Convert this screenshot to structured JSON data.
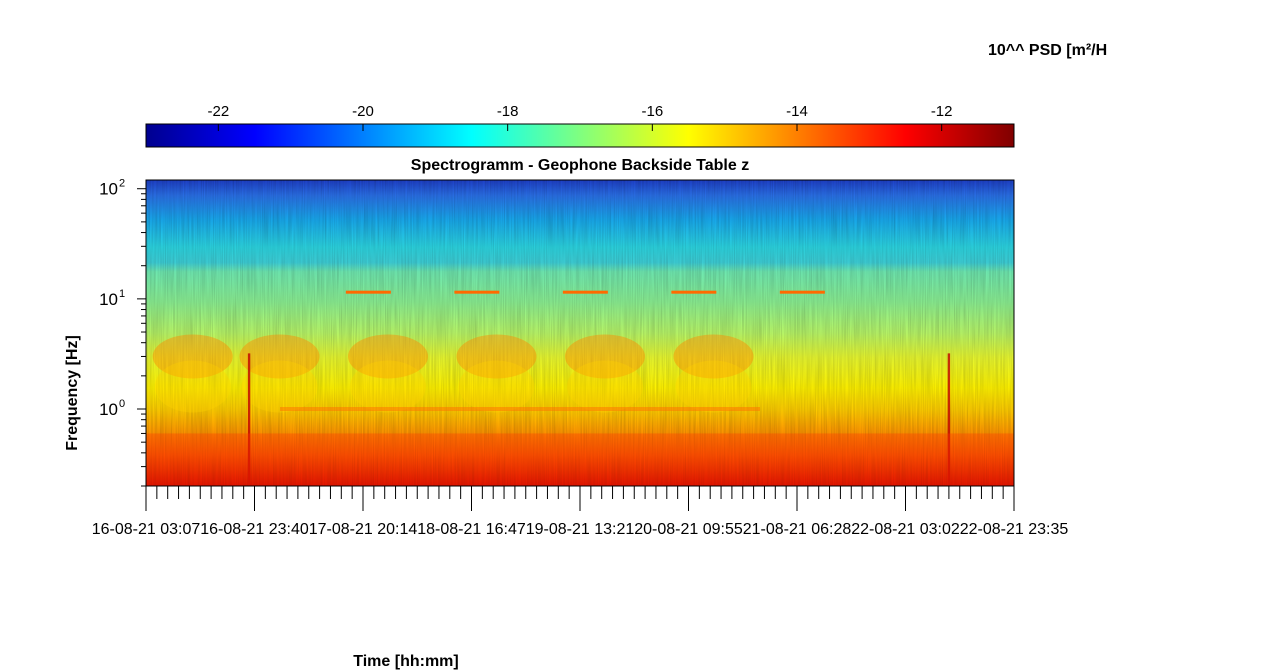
{
  "chart_data": {
    "type": "heatmap",
    "title": "Spectrogramm - Geophone Backside Table z",
    "xlabel": "Time [hh:mm]",
    "ylabel": "Frequency [Hz]",
    "colorbar_label": "10^^ PSD [m²/H",
    "colormap": "jet",
    "x_ticks": [
      "16-08-21 03:07",
      "16-08-21 23:40",
      "17-08-21 20:14",
      "18-08-21 16:47",
      "19-08-21 13:21",
      "20-08-21 09:55",
      "21-08-21 06:28",
      "22-08-21 03:02",
      "22-08-21 23:35"
    ],
    "y_scale": "log",
    "y_ticks": [
      {
        "base": "10",
        "exp": "0",
        "value": 1
      },
      {
        "base": "10",
        "exp": "1",
        "value": 10
      },
      {
        "base": "10",
        "exp": "2",
        "value": 100
      }
    ],
    "ylim": [
      0.2,
      120
    ],
    "colorbar_ticks": [
      "-22",
      "-20",
      "-18",
      "-16",
      "-14",
      "-12"
    ],
    "colorbar_range": [
      -23.0,
      -11.0
    ],
    "features": {
      "day_activity_bursts_x_index": [
        0.2,
        1.0,
        2.0,
        3.0,
        4.0,
        5.0
      ],
      "line_at_11hz_x_index": [
        2.1,
        3.1,
        4.1,
        5.1,
        6.1
      ],
      "spikes_x_index": [
        0.95,
        7.4
      ]
    }
  }
}
